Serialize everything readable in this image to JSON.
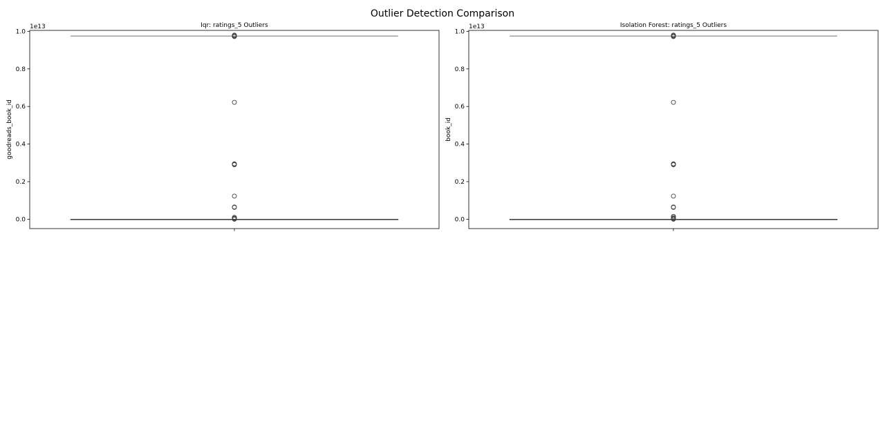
{
  "figure": {
    "suptitle": "Outlier Detection Comparison"
  },
  "chart_data": [
    {
      "type": "box",
      "title": "Iqr: ratings_5 Outliers",
      "xlabel": "",
      "ylabel": "goodreads_book_id",
      "offset_label": "1e13",
      "ylim": [
        -0.05,
        1.005
      ],
      "yticks": [
        0.0,
        0.2,
        0.4,
        0.6,
        0.8,
        1.0
      ],
      "ytick_labels": [
        "0.0",
        "0.2",
        "0.4",
        "0.6",
        "0.8",
        "1.0"
      ],
      "grid": false,
      "box": {
        "q1": 0.0,
        "median": 0.0,
        "q3": 0.0,
        "whisker_low": 0.0,
        "whisker_high": 0.0
      },
      "caps": [
        0.0,
        0.975
      ],
      "outliers": [
        0.0,
        0.003,
        0.006,
        0.01,
        0.063,
        0.065,
        0.123,
        0.29,
        0.293,
        0.295,
        0.622,
        0.972,
        0.975,
        0.978,
        0.98
      ]
    },
    {
      "type": "box",
      "title": "Isolation Forest: ratings_5 Outliers",
      "xlabel": "",
      "ylabel": "book_id",
      "offset_label": "1e13",
      "ylim": [
        -0.05,
        1.005
      ],
      "yticks": [
        0.0,
        0.2,
        0.4,
        0.6,
        0.8,
        1.0
      ],
      "ytick_labels": [
        "0.0",
        "0.2",
        "0.4",
        "0.6",
        "0.8",
        "1.0"
      ],
      "grid": false,
      "box": {
        "q1": 0.0,
        "median": 0.0,
        "q3": 0.0,
        "whisker_low": 0.0,
        "whisker_high": 0.0
      },
      "caps": [
        0.0,
        0.975
      ],
      "outliers": [
        0.0,
        0.002,
        0.005,
        0.01,
        0.015,
        0.063,
        0.065,
        0.123,
        0.29,
        0.293,
        0.295,
        0.622,
        0.972,
        0.975,
        0.978,
        0.98
      ]
    }
  ]
}
